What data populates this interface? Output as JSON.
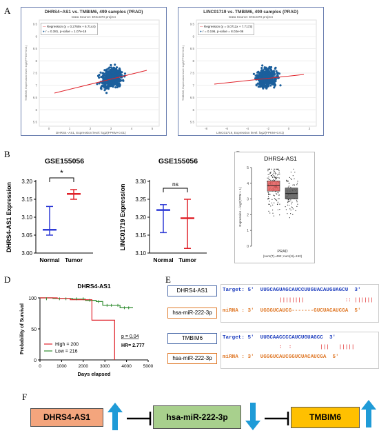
{
  "panels": {
    "a": "A",
    "b": "B",
    "c": "C",
    "d": "D",
    "e": "E",
    "f": "F"
  },
  "panel_a": {
    "plots": [
      {
        "title": "DHRS4−AS1 vs. TMBIM6, 499 samples (PRAD)",
        "source": "Data Source: ENCORI project",
        "legend_reg": "Regression (y = 0.2769x + 6.7144)",
        "legend_r": "r = 0.381, p-value = 1.07e-18",
        "xlabel": "DHRS4−AS1, Expression level: log2(FPKM+0.01)",
        "ylabel": "TMBIM6, Expression level: log2(FPKM+0.01)",
        "xticks": [
          "0",
          "1",
          "2",
          "3",
          "4",
          "5"
        ],
        "yticks": [
          "9.5",
          "9",
          "8.5",
          "8",
          "7.5",
          "7",
          "6.5",
          "6",
          "5.5"
        ]
      },
      {
        "title": "LINC01719 vs. TMBIM6, 499 samples (PRAD)",
        "source": "Data Source: ENCORI project",
        "legend_reg": "Regression (y = 0.0711x + 7.7173)",
        "legend_r": "r = 0.196, p-value = 8.02e-06",
        "xlabel": "LINC01719, Expression level: log2(FPKM+0.01)",
        "ylabel": "TMBIM6, Expression level: log2(FPKM+0.01)",
        "xticks": [
          "-8",
          "-6",
          "-4",
          "-2",
          "0",
          "2"
        ],
        "yticks": [
          "9.5",
          "9",
          "8.5",
          "8",
          "7.5",
          "7",
          "6.5",
          "6",
          "5.5"
        ]
      }
    ]
  },
  "panel_b": {
    "plots": [
      {
        "title": "GSE155056",
        "ylabel": "DHRS4-AS1 Expression",
        "categories": [
          "Normal",
          "Tumor"
        ],
        "yticks": [
          "3.00",
          "3.05",
          "3.10",
          "3.15",
          "3.20"
        ],
        "sig": "*",
        "mean": [
          3.065,
          3.165
        ],
        "lo": [
          3.05,
          3.15
        ],
        "hi": [
          3.13,
          3.177
        ],
        "ylim": [
          3.0,
          3.2
        ]
      },
      {
        "title": "GSE155056",
        "ylabel": "LINC01719 Expression",
        "categories": [
          "Normal",
          "Tumor"
        ],
        "yticks": [
          "3.10",
          "3.15",
          "3.20",
          "3.25",
          "3.30"
        ],
        "sig": "ns",
        "mean": [
          3.22,
          3.197
        ],
        "lo": [
          3.157,
          3.113
        ],
        "hi": [
          3.235,
          3.25
        ],
        "ylim": [
          3.1,
          3.3
        ]
      }
    ],
    "colors": {
      "normal": "#2f3bd6",
      "tumor": "#e0222a"
    }
  },
  "panel_c": {
    "title": "DHRS4-AS1",
    "ylabel": "Expression − log2(TPM + 1)",
    "yticks": [
      "5",
      "4",
      "3",
      "2",
      "1",
      "0"
    ],
    "xlabel": "PRAD",
    "xsub": "(num(T)=492; num(N)=152)",
    "tumor": {
      "color": "#e35a5a",
      "q1": 3.5,
      "median": 3.85,
      "q3": 4.15
    },
    "normal": {
      "color": "#555555",
      "q1": 3.0,
      "median": 3.35,
      "q3": 3.7
    }
  },
  "panel_d": {
    "title": "DHRS4-AS1",
    "ylabel": "Probability of Survival",
    "xlabel": "Days elapsed",
    "xticks": [
      "0",
      "1000",
      "2000",
      "3000",
      "4000",
      "5000"
    ],
    "yticks": [
      "0",
      "50",
      "100"
    ],
    "pval": "p = 0.04",
    "hr": "HR= 2.777",
    "legend": [
      {
        "label": "High = 200",
        "color": "#e0222a"
      },
      {
        "label": "Low = 216",
        "color": "#2e8b2e"
      }
    ]
  },
  "panel_e": {
    "pairs": [
      {
        "gene": "DHRS4-AS1",
        "mirna": "hsa-miR-222-3p",
        "target": "Target: 5'  UUGCAGUAGCAUCCUUGUACAUGUAGCU  3'",
        "bonds": "                  ||||||||             :: ||||||",
        "mir": "miRNA : 3'  UGGGUCAUCG-------GUCUACAUCGA  5'"
      },
      {
        "gene": "TMBIM6",
        "mirna": "hsa-miR-222-3p",
        "target": "Target: 5'  UUGCAACCCCAUCUGUAGCC  3'",
        "bonds": "                  :  :         |||   |||||",
        "mir": "miRNA : 3'  UGGGUCAUCGGUCUACAUCGA  5'"
      }
    ],
    "colors": {
      "target": "#1f3fbf",
      "mirna": "#e07a2a",
      "bonds": "#d11"
    }
  },
  "panel_f": {
    "nodes": [
      {
        "label": "DHRS4-AS1",
        "color": "#f4a57d"
      },
      {
        "label": "hsa-miR-222-3p",
        "color": "#a8d08d"
      },
      {
        "label": "TMBIM6",
        "color": "#ffc000"
      }
    ],
    "arrow_color": "#1f9bd7"
  }
}
